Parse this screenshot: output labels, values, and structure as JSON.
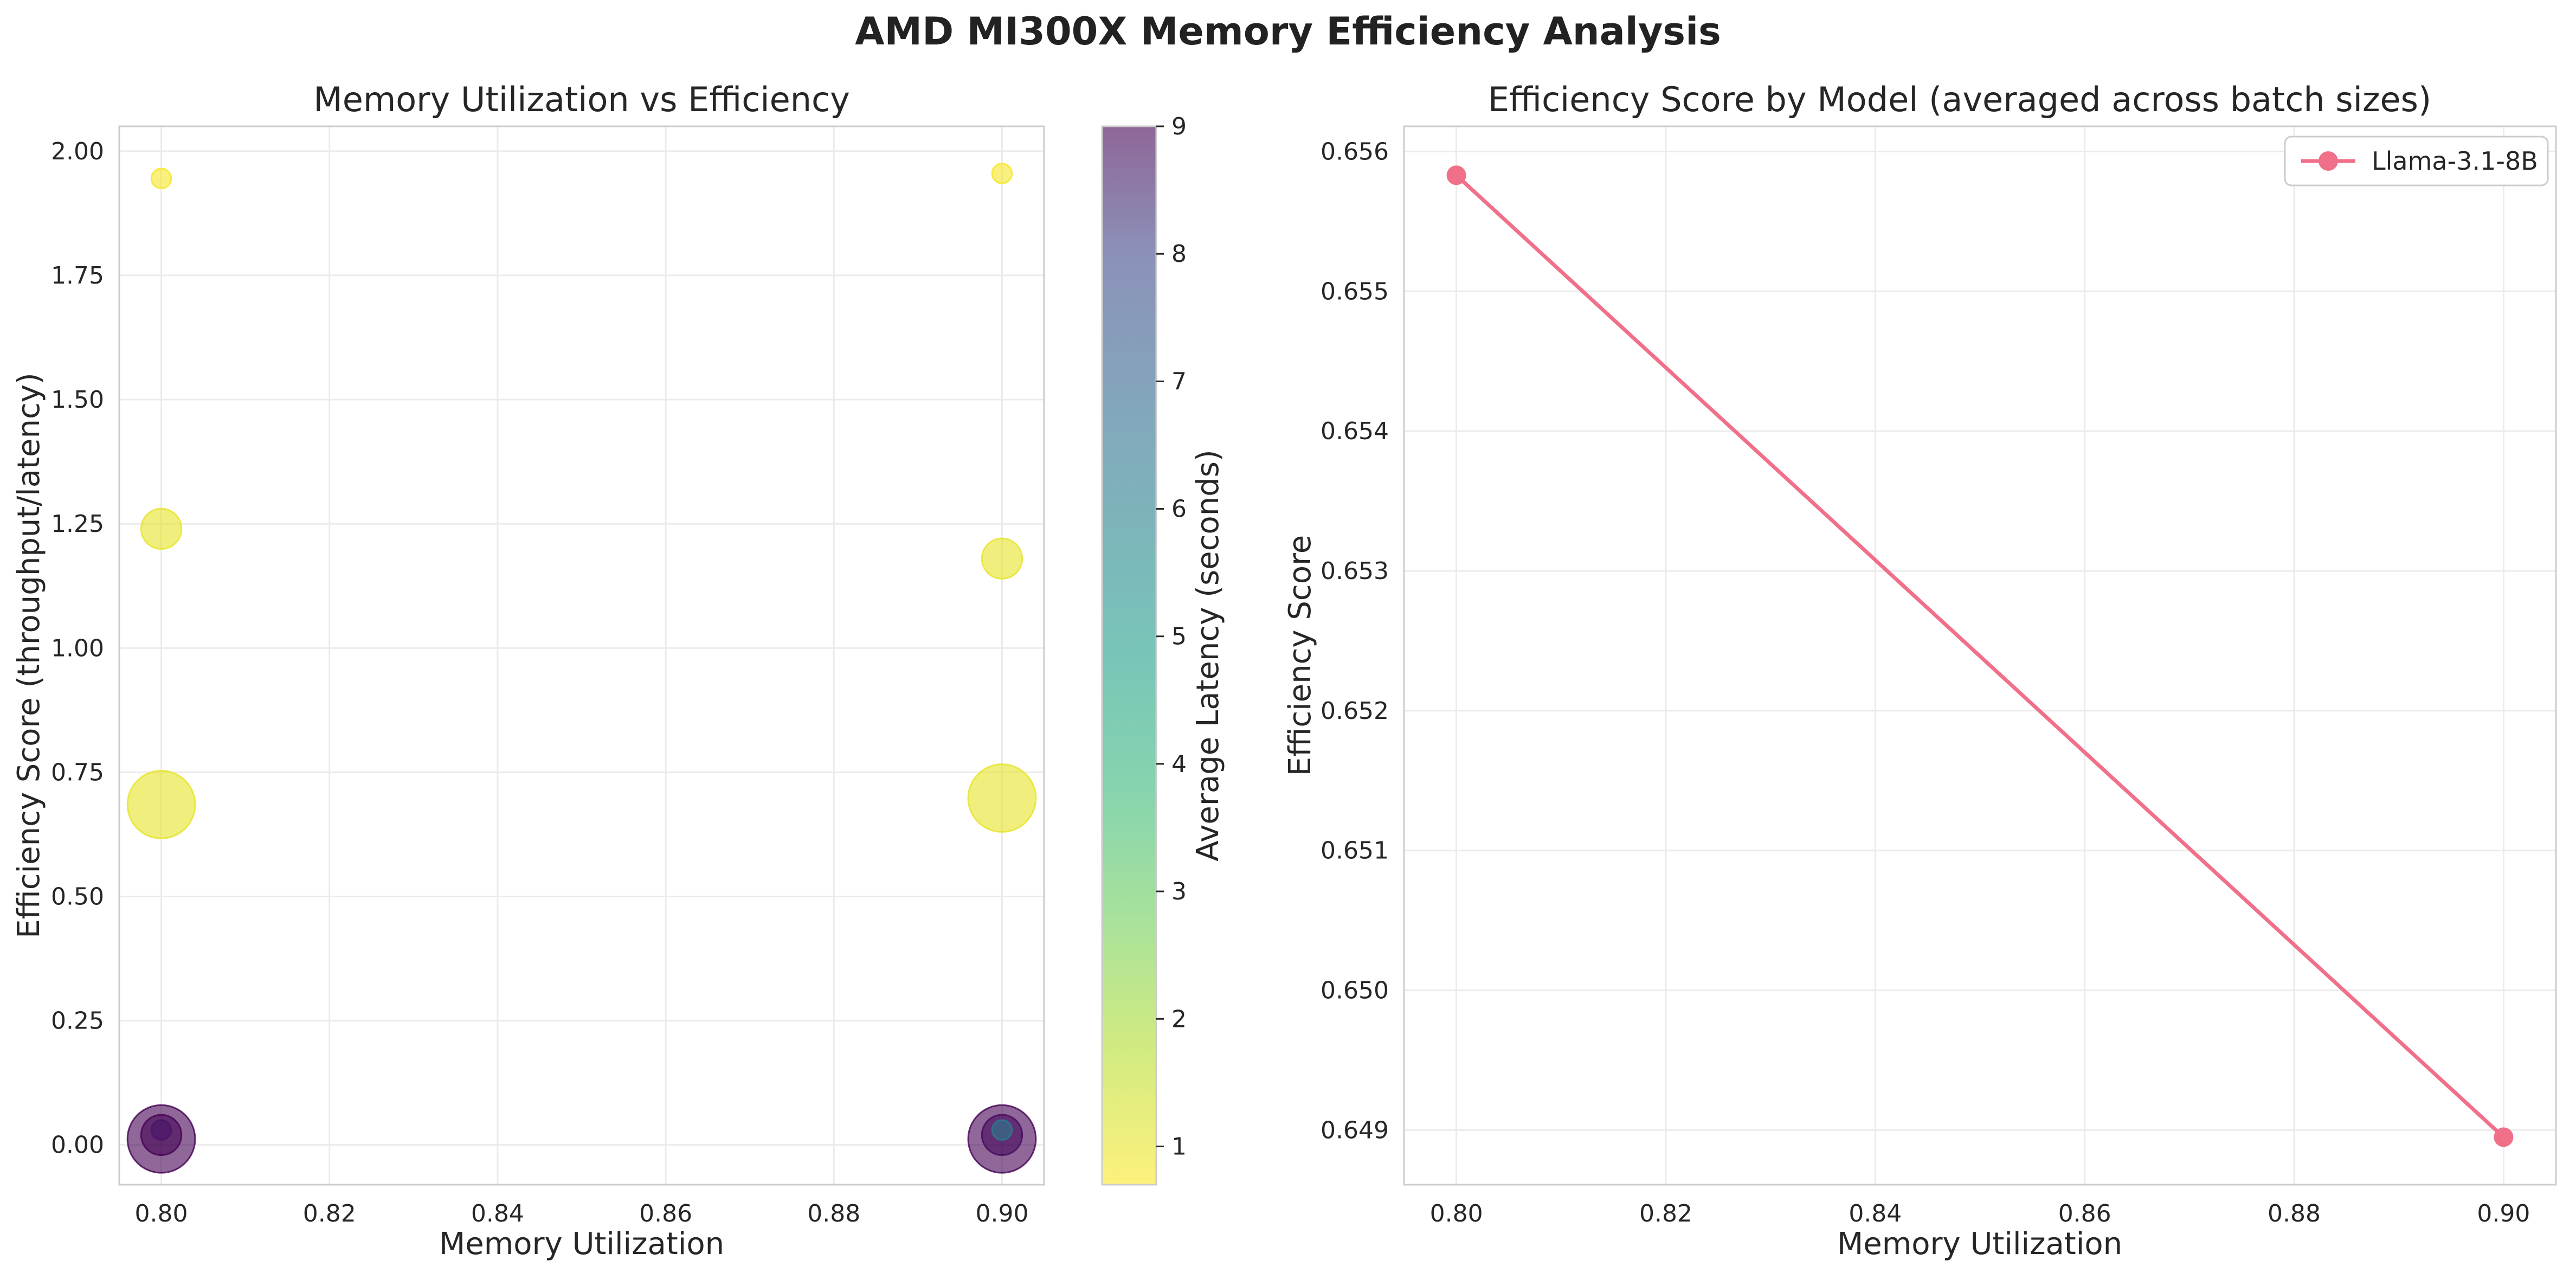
{
  "figure_title": "AMD MI300X Memory Efficiency Analysis",
  "chart_data": [
    {
      "type": "scatter",
      "title": "Memory Utilization vs Efficiency",
      "xlabel": "Memory Utilization",
      "ylabel": "Efficiency Score (throughput/latency)",
      "xlim": [
        0.795,
        0.905
      ],
      "ylim": [
        -0.08,
        2.05
      ],
      "xticks": [
        "0.80",
        "0.82",
        "0.84",
        "0.86",
        "0.88",
        "0.90"
      ],
      "xtick_values": [
        0.8,
        0.82,
        0.84,
        0.86,
        0.88,
        0.9
      ],
      "yticks": [
        "0.00",
        "0.25",
        "0.50",
        "0.75",
        "1.00",
        "1.25",
        "1.50",
        "1.75",
        "2.00"
      ],
      "ytick_values": [
        0.0,
        0.25,
        0.5,
        0.75,
        1.0,
        1.25,
        1.5,
        1.75,
        2.0
      ],
      "grid": true,
      "colormap": "viridis_r",
      "point_alpha": 0.6,
      "points": [
        {
          "x": 0.8,
          "y": 1.945,
          "latency": 0.8,
          "batch_size": 1
        },
        {
          "x": 0.8,
          "y": 1.24,
          "latency": 1.0,
          "batch_size": 16
        },
        {
          "x": 0.8,
          "y": 0.685,
          "latency": 1.0,
          "batch_size": 64
        },
        {
          "x": 0.8,
          "y": 0.012,
          "latency": 9.0,
          "batch_size": 64
        },
        {
          "x": 0.8,
          "y": 0.02,
          "latency": 9.0,
          "batch_size": 16
        },
        {
          "x": 0.8,
          "y": 0.03,
          "latency": 8.5,
          "batch_size": 1
        },
        {
          "x": 0.9,
          "y": 1.955,
          "latency": 0.8,
          "batch_size": 1
        },
        {
          "x": 0.9,
          "y": 1.18,
          "latency": 1.0,
          "batch_size": 16
        },
        {
          "x": 0.9,
          "y": 0.698,
          "latency": 1.0,
          "batch_size": 64
        },
        {
          "x": 0.9,
          "y": 0.012,
          "latency": 9.0,
          "batch_size": 64
        },
        {
          "x": 0.9,
          "y": 0.02,
          "latency": 8.8,
          "batch_size": 16
        },
        {
          "x": 0.9,
          "y": 0.03,
          "latency": 5.5,
          "batch_size": 1
        }
      ],
      "colorbar": {
        "label": "Average Latency (seconds)",
        "range": [
          0.7,
          9.0
        ],
        "ticks": [
          "1",
          "2",
          "3",
          "4",
          "5",
          "6",
          "7",
          "8",
          "9"
        ],
        "tick_values": [
          1,
          2,
          3,
          4,
          5,
          6,
          7,
          8,
          9
        ]
      }
    },
    {
      "type": "line",
      "title": "Efficiency Score by Model (averaged across batch sizes)",
      "xlabel": "Memory Utilization",
      "ylabel": "Efficiency Score",
      "xlim": [
        0.795,
        0.905
      ],
      "ylim": [
        0.64861,
        0.65618
      ],
      "xticks": [
        "0.80",
        "0.82",
        "0.84",
        "0.86",
        "0.88",
        "0.90"
      ],
      "xtick_values": [
        0.8,
        0.82,
        0.84,
        0.86,
        0.88,
        0.9
      ],
      "yticks": [
        "0.649",
        "0.650",
        "0.651",
        "0.652",
        "0.653",
        "0.654",
        "0.655",
        "0.656"
      ],
      "ytick_values": [
        0.649,
        0.65,
        0.651,
        0.652,
        0.653,
        0.654,
        0.655,
        0.656
      ],
      "grid": true,
      "legend_position": "top-right",
      "series": [
        {
          "name": "Llama-3.1-8B",
          "color": "#f0708a",
          "x": [
            0.8,
            0.9
          ],
          "y": [
            0.65583,
            0.64895
          ]
        }
      ]
    }
  ]
}
